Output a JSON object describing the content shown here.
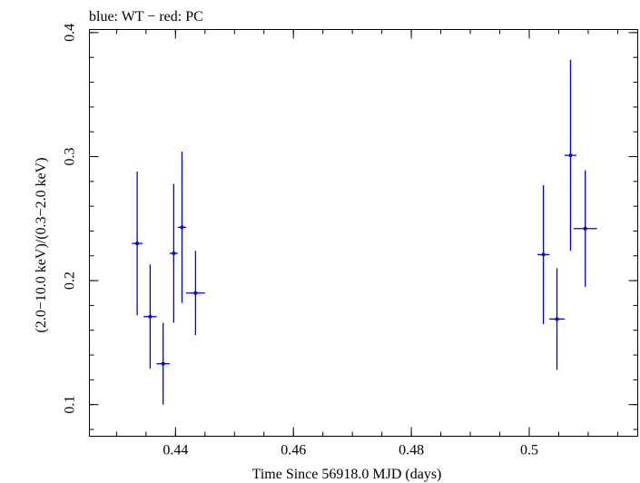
{
  "chart_data": {
    "type": "scatter",
    "title": "blue: WT − red: PC",
    "xlabel": "Time Since 56918.0 MJD (days)",
    "ylabel": "(2.0−10.0 keV)/(0.3−2.0 keV)",
    "xlim": [
      0.4254,
      0.5184
    ],
    "ylim": [
      0.0745,
      0.4025
    ],
    "xticks": [
      {
        "value": 0.44,
        "label": "0.44"
      },
      {
        "value": 0.46,
        "label": "0.46"
      },
      {
        "value": 0.48,
        "label": "0.48"
      },
      {
        "value": 0.5,
        "label": "0.5"
      }
    ],
    "yticks": [
      {
        "value": 0.1,
        "label": "0.1"
      },
      {
        "value": 0.2,
        "label": "0.2"
      },
      {
        "value": 0.3,
        "label": "0.3"
      },
      {
        "value": 0.4,
        "label": "0.4"
      }
    ],
    "x_minor_step": 0.005,
    "y_minor_step": 0.02,
    "grid": false,
    "series": [
      {
        "color": "#0000ee",
        "points": [
          {
            "x": 0.4335,
            "xerr": 0.0009,
            "y": 0.23,
            "yerr": 0.058
          },
          {
            "x": 0.4357,
            "xerr": 0.0011,
            "y": 0.171,
            "yerr": 0.042
          },
          {
            "x": 0.4379,
            "xerr": 0.0011,
            "y": 0.133,
            "yerr": 0.033
          },
          {
            "x": 0.4397,
            "xerr": 0.0007,
            "y": 0.222,
            "yerr": 0.056
          },
          {
            "x": 0.4411,
            "xerr": 0.0007,
            "y": 0.243,
            "yerr": 0.061
          },
          {
            "x": 0.4434,
            "xerr": 0.0016,
            "y": 0.19,
            "yerr": 0.034
          },
          {
            "x": 0.5024,
            "xerr": 0.001,
            "y": 0.221,
            "yerr": 0.056
          },
          {
            "x": 0.5047,
            "xerr": 0.0013,
            "y": 0.169,
            "yerr": 0.041
          },
          {
            "x": 0.507,
            "xerr": 0.001,
            "y": 0.301,
            "yerr": 0.077
          },
          {
            "x": 0.5095,
            "xerr": 0.002,
            "y": 0.242,
            "yerr": 0.047
          }
        ]
      }
    ]
  }
}
